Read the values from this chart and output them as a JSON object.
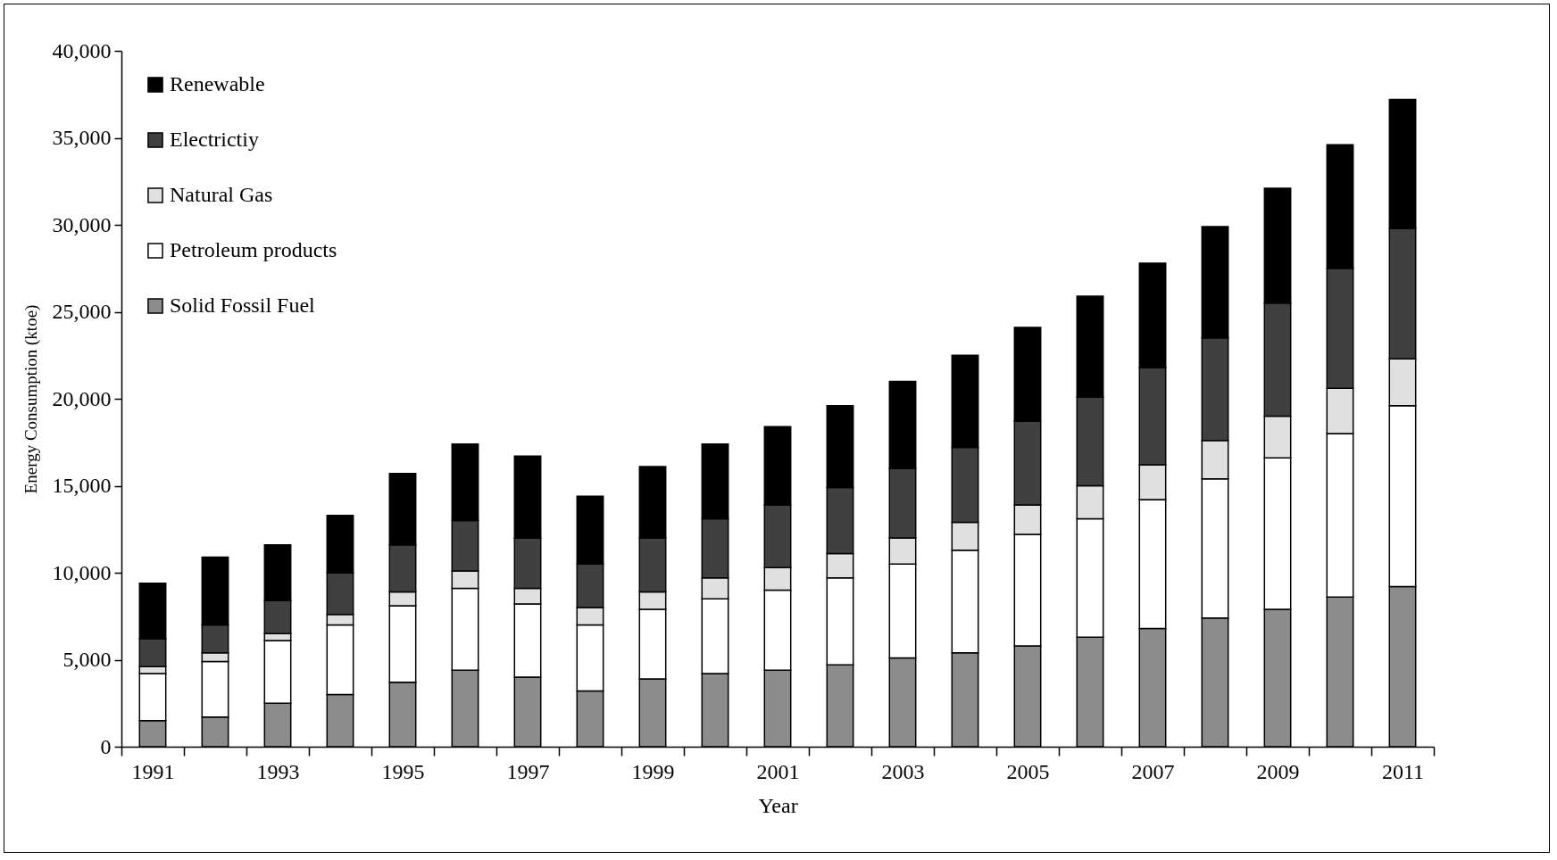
{
  "chart_data": {
    "type": "bar",
    "stacked": true,
    "xlabel": "Year",
    "ylabel": "Energy Consumption (ktoe)",
    "categories": [
      "1991",
      null,
      "1993",
      null,
      "1995",
      null,
      "1997",
      null,
      "1999",
      null,
      "2001",
      null,
      "2003",
      null,
      "2005",
      null,
      "2007",
      null,
      "2009",
      null,
      "2011"
    ],
    "series": [
      {
        "name": "Solid Fossil Fuel",
        "color": "#8c8c8c",
        "values": [
          1500,
          1700,
          2500,
          3000,
          3700,
          4400,
          4000,
          3200,
          3900,
          4200,
          4400,
          4700,
          5100,
          5400,
          5800,
          6300,
          6800,
          7400,
          7900,
          8600,
          9200
        ]
      },
      {
        "name": "Petroleum products",
        "color": "#ffffff",
        "values": [
          2700,
          3200,
          3600,
          4000,
          4400,
          4700,
          4200,
          3800,
          4000,
          4300,
          4600,
          5000,
          5400,
          5900,
          6400,
          6800,
          7400,
          8000,
          8700,
          9400,
          10400
        ]
      },
      {
        "name": "Natural Gas",
        "color": "#e0e0e0",
        "values": [
          400,
          500,
          400,
          600,
          800,
          1000,
          900,
          1000,
          1000,
          1200,
          1300,
          1400,
          1500,
          1600,
          1700,
          1900,
          2000,
          2200,
          2400,
          2600,
          2700
        ]
      },
      {
        "name": "Electrictiy",
        "color": "#404040",
        "values": [
          1600,
          1600,
          1900,
          2400,
          2700,
          2900,
          2900,
          2500,
          3100,
          3400,
          3600,
          3800,
          4000,
          4300,
          4800,
          5100,
          5600,
          5900,
          6500,
          6900,
          7500
        ]
      },
      {
        "name": "Renewable",
        "color": "#000000",
        "values": [
          3200,
          3900,
          3200,
          3300,
          4100,
          4400,
          4700,
          3900,
          4100,
          4300,
          4500,
          4700,
          5000,
          5300,
          5400,
          5800,
          6000,
          6400,
          6600,
          7100,
          7400
        ]
      }
    ],
    "ylim": [
      0,
      40000
    ],
    "yticks": [
      0,
      {
        "value": 5000,
        "label": "5,000"
      },
      {
        "value": 10000,
        "label": "10,000"
      },
      {
        "value": 15000,
        "label": "15,000"
      },
      {
        "value": 20000,
        "label": "20,000"
      },
      {
        "value": 25000,
        "label": "25,000"
      },
      {
        "value": 30000,
        "label": "30,000"
      },
      {
        "value": 35000,
        "label": "35,000"
      },
      {
        "value": 40000,
        "label": "40,000"
      }
    ],
    "grid": false,
    "legend": "top left"
  }
}
